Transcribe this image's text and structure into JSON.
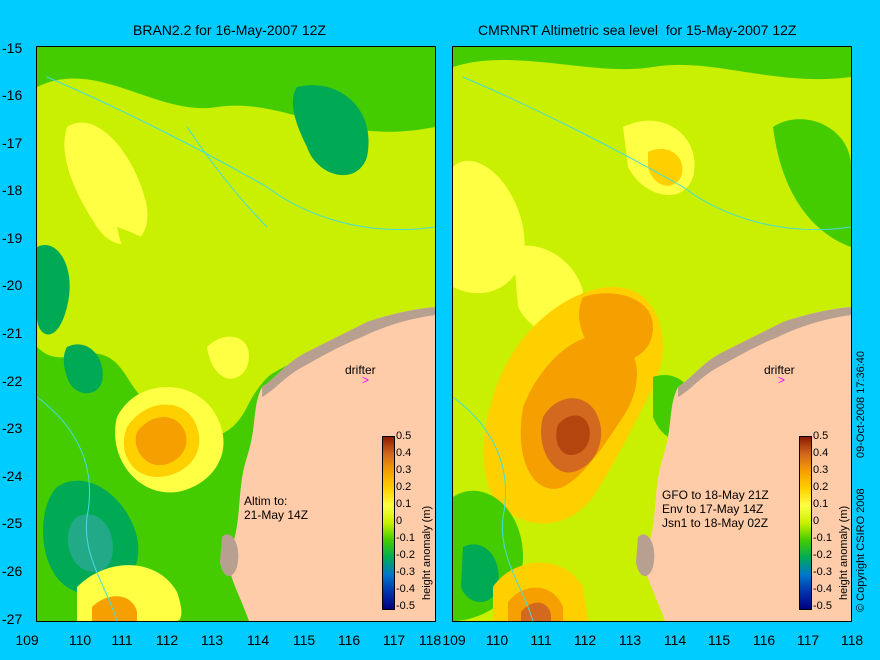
{
  "left_map": {
    "title": "BRAN2.2 for 16-May-2007 12Z",
    "drifter_label": "drifter",
    "altim_note": [
      "Altim to:",
      "21-May 14Z"
    ]
  },
  "right_map": {
    "title": "CMRNRT Altimetric sea level  for 15-May-2007 12Z",
    "drifter_label": "drifter",
    "altim_note": [
      "GFO to 18-May 21Z",
      "Env to 17-May 14Z",
      "Jsn1 to 18-May 02Z"
    ]
  },
  "y_ticks": [
    "-15",
    "-16",
    "-17",
    "-18",
    "-19",
    "-20",
    "-21",
    "-22",
    "-23",
    "-24",
    "-25",
    "-26",
    "-27"
  ],
  "x_ticks_left": [
    "109",
    "110",
    "111",
    "112",
    "113",
    "114",
    "115",
    "116",
    "117",
    "118"
  ],
  "x_ticks_right": [
    "109",
    "110",
    "111",
    "112",
    "113",
    "114",
    "115",
    "116",
    "117",
    "118"
  ],
  "colorbar": {
    "ticks": [
      "0.5",
      "0.4",
      "0.3",
      "0.2",
      "0.1",
      "0",
      "-0.1",
      "-0.2",
      "-0.3",
      "-0.4",
      "-0.5"
    ],
    "label": "height anomaly (m)",
    "colors": [
      "#8b1a00",
      "#d2691e",
      "#f5a000",
      "#ffd000",
      "#ffff44",
      "#c8f000",
      "#44cc00",
      "#00aa55",
      "#0077cc",
      "#0033aa",
      "#000080"
    ]
  },
  "side_text": {
    "copyright": "© Copyright CSIRO 2008",
    "date": "09-Oct-2008 17:36:40"
  },
  "colors": {
    "background": "#00ccff",
    "land": "#ffccaa",
    "coast_shading": "#b8a090",
    "drifter": "#ff00ff"
  }
}
